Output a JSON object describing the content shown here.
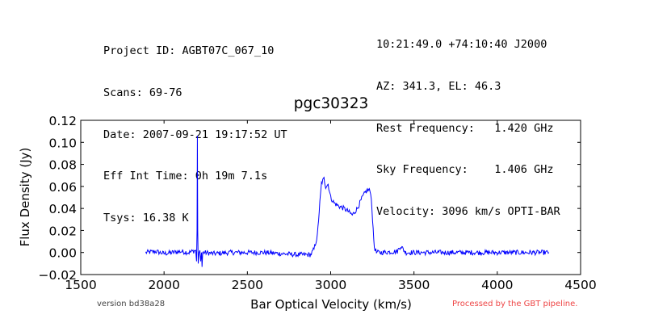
{
  "header": {
    "left": [
      "Project ID: AGBT07C_067_10",
      "Scans: 69-76",
      "Date: 2007-09-21 19:17:52 UT",
      "Eff Int Time: 0h 19m 7.1s",
      "Tsys: 16.38 K"
    ],
    "right": [
      "10:21:49.0 +74:10:40 J2000",
      "AZ: 341.3, EL: 46.3",
      "Rest Frequency:   1.420 GHz",
      "Sky Frequency:    1.406 GHz",
      "Velocity: 3096 km/s OPTI-BAR"
    ]
  },
  "footer": {
    "version": "version bd38a28",
    "pipeline": "Processed by the GBT pipeline."
  },
  "colors": {
    "line": "#0000ff",
    "pipeline_text": "#ee4444",
    "version_text": "#444444"
  },
  "chart_data": {
    "type": "line",
    "title": "pgc30323",
    "xlabel": "Bar Optical Velocity (km/s)",
    "ylabel": "Flux Density (Jy)",
    "xlim": [
      1500,
      4500
    ],
    "ylim": [
      -0.02,
      0.12
    ],
    "xticks": [
      1500,
      2000,
      2500,
      3000,
      3500,
      4000,
      4500
    ],
    "yticks": [
      -0.02,
      0.0,
      0.02,
      0.04,
      0.06,
      0.08,
      0.1,
      0.12
    ],
    "ytick_labels": [
      "−0.02",
      "0.00",
      "0.02",
      "0.04",
      "0.06",
      "0.08",
      "0.10",
      "0.12"
    ],
    "grid": false,
    "series": [
      {
        "x": [
          1890,
          1950,
          2000,
          2050,
          2100,
          2150,
          2190,
          2195,
          2198,
          2200,
          2202,
          2205,
          2210,
          2215,
          2220,
          2225,
          2228,
          2232,
          2240,
          2300,
          2400,
          2500,
          2600,
          2700,
          2800,
          2880,
          2900,
          2920,
          2935,
          2945,
          2960,
          2970,
          2985,
          3000,
          3020,
          3050,
          3080,
          3100,
          3130,
          3160,
          3190,
          3210,
          3225,
          3240,
          3248,
          3255,
          3262,
          3275,
          3300,
          3400,
          3420,
          3450,
          3500,
          3600,
          3700,
          3800,
          3900,
          4000,
          4100,
          4200,
          4310
        ],
        "y": [
          0.0,
          0.001,
          -0.001,
          0.0,
          0.001,
          0.0,
          0.002,
          -0.008,
          0.02,
          0.106,
          0.02,
          -0.01,
          0.0,
          0.002,
          -0.008,
          0.0,
          -0.013,
          0.0,
          0.0,
          -0.001,
          0.0,
          0.0,
          0.0,
          -0.001,
          -0.002,
          -0.002,
          0.003,
          0.015,
          0.045,
          0.063,
          0.067,
          0.06,
          0.062,
          0.05,
          0.045,
          0.042,
          0.04,
          0.038,
          0.034,
          0.04,
          0.05,
          0.055,
          0.057,
          0.055,
          0.04,
          0.02,
          0.005,
          0.0,
          0.0,
          0.001,
          0.006,
          0.0,
          0.0,
          0.0,
          0.0,
          0.0,
          0.0,
          0.0,
          0.0,
          0.0,
          0.0
        ]
      }
    ]
  }
}
